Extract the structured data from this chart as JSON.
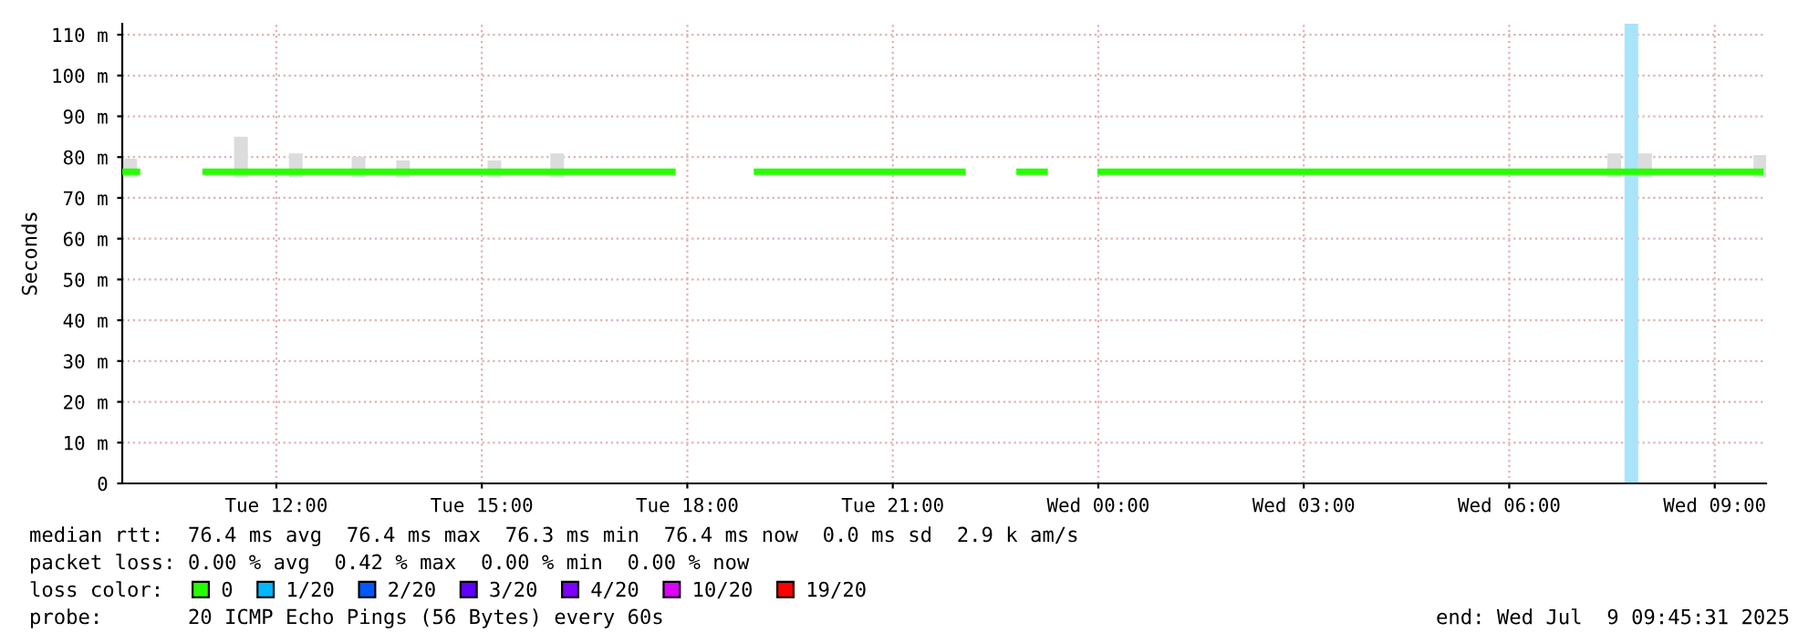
{
  "chart_data": {
    "type": "line",
    "ylabel": "Seconds",
    "xlim": [
      "2025-07-08T09:45",
      "2025-07-09T09:45"
    ],
    "xticks": [
      {
        "value": "2025-07-08T12:00",
        "label": "Tue 12:00"
      },
      {
        "value": "2025-07-08T15:00",
        "label": "Tue 15:00"
      },
      {
        "value": "2025-07-08T18:00",
        "label": "Tue 18:00"
      },
      {
        "value": "2025-07-08T21:00",
        "label": "Tue 21:00"
      },
      {
        "value": "2025-07-09T00:00",
        "label": "Wed 00:00"
      },
      {
        "value": "2025-07-09T03:00",
        "label": "Wed 03:00"
      },
      {
        "value": "2025-07-09T06:00",
        "label": "Wed 06:00"
      },
      {
        "value": "2025-07-09T09:00",
        "label": "Wed 09:00"
      }
    ],
    "ylim": [
      0,
      112.7
    ],
    "yticks": [
      0,
      {
        "value": 10,
        "label": "10 m"
      },
      {
        "value": 20,
        "label": "20 m"
      },
      {
        "value": 30,
        "label": "30 m"
      },
      {
        "value": 40,
        "label": "40 m"
      },
      {
        "value": 50,
        "label": "50 m"
      },
      {
        "value": 60,
        "label": "60 m"
      },
      {
        "value": 70,
        "label": "70 m"
      },
      {
        "value": 80,
        "label": "80 m"
      },
      {
        "value": 90,
        "label": "90 m"
      },
      {
        "value": 100,
        "label": "100 m"
      },
      {
        "value": 110,
        "label": "110 m"
      }
    ],
    "grid": true,
    "legend": "bottom left",
    "legend_title": "loss color:",
    "series": [
      {
        "type": "bar",
        "color": "#dcdcdc",
        "x": [
          "2025-07-08T09:52",
          "2025-07-08T11:29",
          "2025-07-08T12:17",
          "2025-07-08T13:12",
          "2025-07-08T13:51",
          "2025-07-08T15:11",
          "2025-07-08T16:06",
          "2025-07-09T07:32",
          "2025-07-09T07:59",
          "2025-07-09T09:40"
        ],
        "base": [
          75,
          75,
          75,
          75,
          75,
          75,
          75,
          75,
          75,
          75
        ],
        "values": [
          4.6,
          10,
          5.9,
          5.1,
          4.2,
          4.2,
          5.9,
          5.9,
          5.9,
          5.5
        ]
      },
      {
        "name": "0",
        "color": "#26ff00",
        "x": [
          "2025-07-08T09:45",
          "2025-07-08T09:58",
          "2025-07-08T10:30",
          "2025-07-08T10:58",
          "2025-07-08T17:47",
          "2025-07-08T18:24",
          "2025-07-08T19:01",
          "2025-07-08T22:01",
          "2025-07-08T22:24",
          "2025-07-08T22:51",
          "2025-07-08T23:13",
          "2025-07-08T23:36",
          "2025-07-09T00:02",
          "2025-07-09T09:40"
        ],
        "values": [
          76.4,
          76.4,
          null,
          76.4,
          76.4,
          null,
          76.4,
          76.4,
          null,
          76.4,
          76.4,
          null,
          76.4,
          76.4
        ]
      },
      {
        "name": "1/20",
        "color": "#00b8ff"
      },
      {
        "name": "2/20",
        "color": "#0059ff"
      },
      {
        "name": "3/20",
        "color": "#5e00ff"
      },
      {
        "name": "4/20",
        "color": "#7e00ff"
      },
      {
        "name": "10/20",
        "color": "#dd00ff"
      },
      {
        "name": "19/20",
        "color": "#ff0000"
      }
    ],
    "bands": [
      {
        "axis": "x",
        "from": "2025-07-09T07:41",
        "to": "2025-07-09T07:53",
        "color": "#a8e4fa"
      }
    ],
    "annotations": [
      "median rtt:  76.4 ms avg  76.4 ms max  76.3 ms min  76.4 ms now  0.0 ms sd  2.9 k am/s",
      "packet loss: 0.00 % avg  0.42 % max  0.00 % min  0.00 % now",
      "probe:       20 ICMP Echo Pings (56 Bytes) every 60s",
      "end: Wed Jul  9 09:45:31 2025"
    ]
  }
}
